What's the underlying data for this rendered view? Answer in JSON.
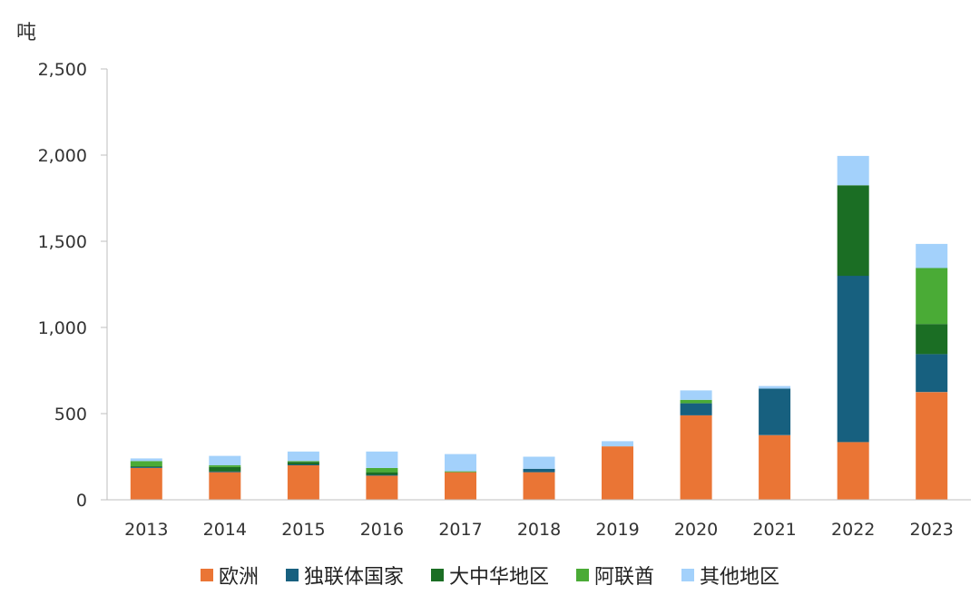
{
  "chart_data": {
    "type": "bar",
    "stacked": true,
    "ylabel": "吨",
    "ylim": [
      0,
      2500
    ],
    "yticks": [
      0,
      500,
      1000,
      1500,
      2000,
      2500
    ],
    "ytick_labels": [
      "0",
      "500",
      "1,000",
      "1,500",
      "2,000",
      "2,500"
    ],
    "categories": [
      "2013",
      "2014",
      "2015",
      "2016",
      "2017",
      "2018",
      "2019",
      "2020",
      "2021",
      "2022",
      "2023"
    ],
    "series": [
      {
        "name": "欧洲",
        "color": "#ea7535",
        "values": [
          185,
          160,
          200,
          140,
          160,
          160,
          310,
          490,
          375,
          335,
          625
        ]
      },
      {
        "name": "独联体国家",
        "color": "#17607f",
        "values": [
          5,
          5,
          5,
          5,
          0,
          20,
          0,
          70,
          270,
          965,
          220
        ]
      },
      {
        "name": "大中华地区",
        "color": "#1b6e24",
        "values": [
          5,
          25,
          15,
          15,
          0,
          0,
          0,
          0,
          0,
          525,
          175
        ]
      },
      {
        "name": "阿联酋",
        "color": "#4aab36",
        "values": [
          30,
          10,
          5,
          25,
          5,
          0,
          0,
          20,
          0,
          0,
          325
        ]
      },
      {
        "name": "其他地区",
        "color": "#a3d1fb",
        "values": [
          15,
          55,
          55,
          95,
          100,
          70,
          30,
          55,
          15,
          170,
          140
        ]
      }
    ],
    "legend_position": "bottom",
    "grid": false
  }
}
